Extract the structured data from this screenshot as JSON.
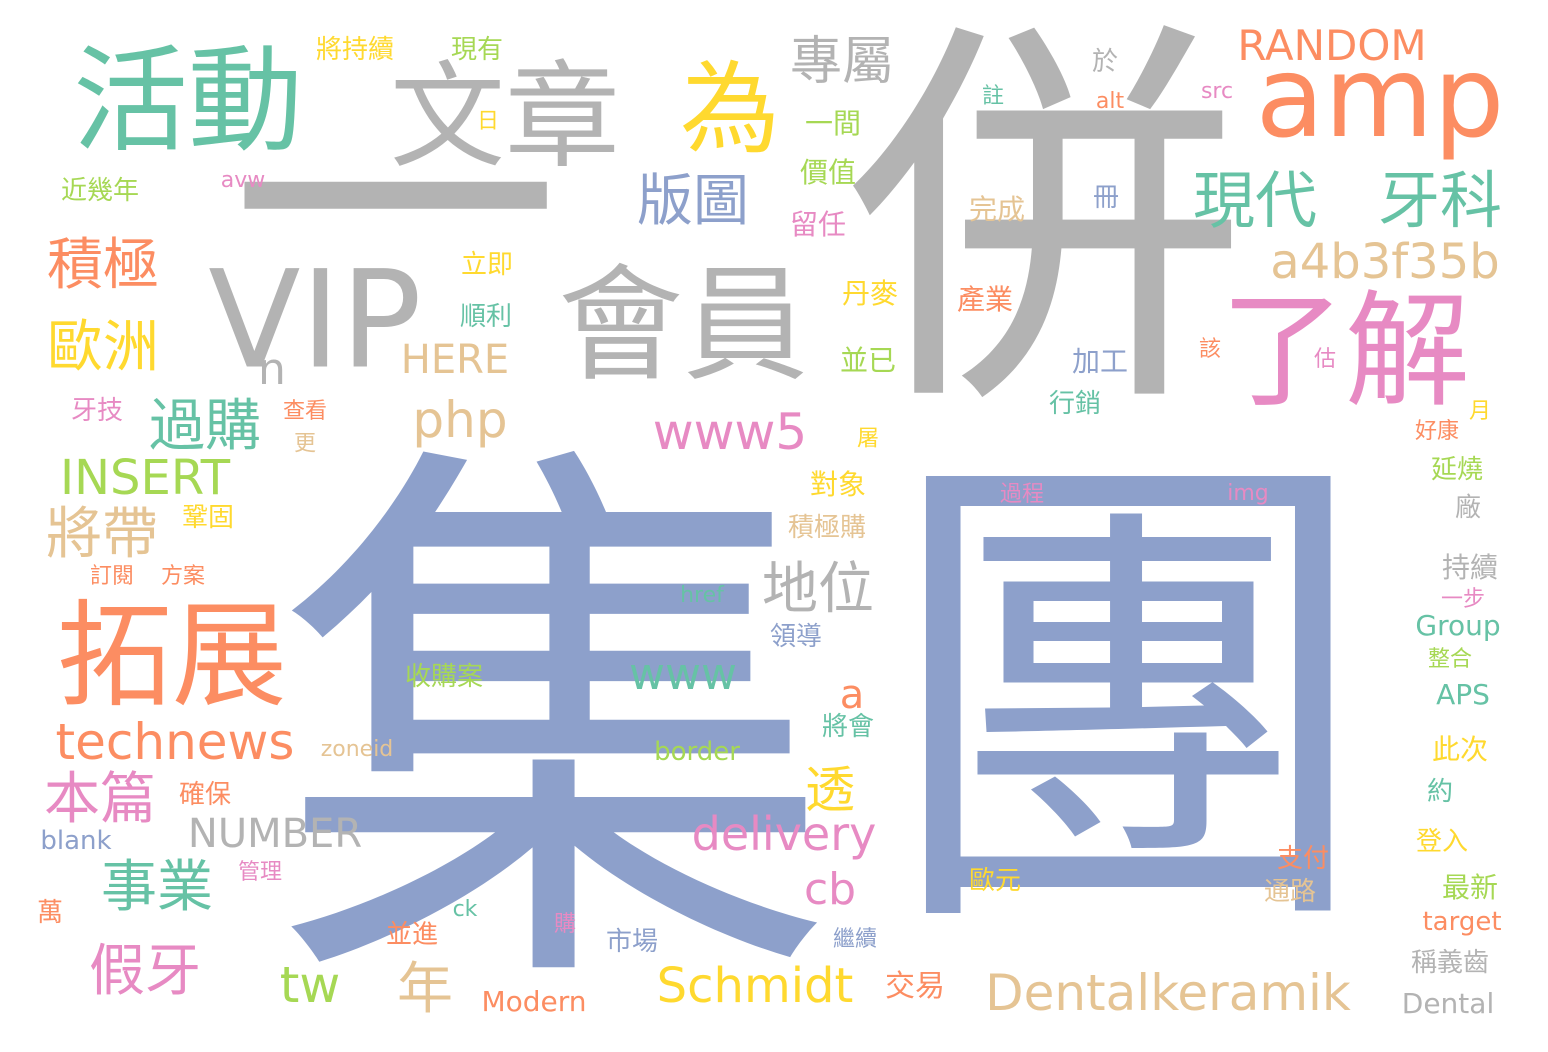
{
  "cloud": {
    "palette": {
      "gray": "#b3b3b3",
      "blue": "#8da0cb",
      "orange": "#fc8d62",
      "green": "#66c2a5",
      "pink": "#e78ac3",
      "lime": "#a6d854",
      "yellow": "#ffd92f",
      "tan": "#e5c494"
    },
    "words": [
      {
        "text": "集",
        "color": "blue"
      },
      {
        "text": "團",
        "color": "blue"
      },
      {
        "text": "併",
        "color": "gray"
      },
      {
        "text": "一",
        "color": "gray"
      },
      {
        "text": "活動",
        "color": "green"
      },
      {
        "text": "文章",
        "color": "gray"
      },
      {
        "text": "為",
        "color": "yellow"
      },
      {
        "text": "amp",
        "color": "orange"
      },
      {
        "text": "VIP",
        "color": "gray"
      },
      {
        "text": "會員",
        "color": "gray"
      },
      {
        "text": "了解",
        "color": "pink"
      },
      {
        "text": "拓展",
        "color": "orange"
      },
      {
        "text": "專屬",
        "color": "gray"
      },
      {
        "text": "RANDOM",
        "color": "orange"
      },
      {
        "text": "現代",
        "color": "green"
      },
      {
        "text": "牙科",
        "color": "green"
      },
      {
        "text": "版圖",
        "color": "blue"
      },
      {
        "text": "a4b3f35b",
        "color": "tan"
      },
      {
        "text": "積極",
        "color": "orange"
      },
      {
        "text": "歐洲",
        "color": "yellow"
      },
      {
        "text": "過購",
        "color": "green"
      },
      {
        "text": "php",
        "color": "tan"
      },
      {
        "text": "www5",
        "color": "pink"
      },
      {
        "text": "INSERT",
        "color": "lime"
      },
      {
        "text": "將帶",
        "color": "tan"
      },
      {
        "text": "地位",
        "color": "gray"
      },
      {
        "text": "www",
        "color": "green"
      },
      {
        "text": "technews",
        "color": "orange"
      },
      {
        "text": "本篇",
        "color": "pink"
      },
      {
        "text": "透",
        "color": "yellow"
      },
      {
        "text": "NUMBER",
        "color": "gray"
      },
      {
        "text": "delivery",
        "color": "pink"
      },
      {
        "text": "事業",
        "color": "green"
      },
      {
        "text": "cb",
        "color": "pink"
      },
      {
        "text": "假牙",
        "color": "pink"
      },
      {
        "text": "tw",
        "color": "lime"
      },
      {
        "text": "年",
        "color": "tan"
      },
      {
        "text": "Schmidt",
        "color": "yellow"
      },
      {
        "text": "Dentalkeramik",
        "color": "tan"
      },
      {
        "text": "HERE",
        "color": "tan"
      },
      {
        "text": "n",
        "color": "gray"
      },
      {
        "text": "a",
        "color": "orange"
      },
      {
        "text": "將持續",
        "color": "yellow"
      },
      {
        "text": "現有",
        "color": "lime"
      },
      {
        "text": "於",
        "color": "gray"
      },
      {
        "text": "註",
        "color": "green"
      },
      {
        "text": "alt",
        "color": "orange"
      },
      {
        "text": "src",
        "color": "pink"
      },
      {
        "text": "日",
        "color": "yellow"
      },
      {
        "text": "一間",
        "color": "lime"
      },
      {
        "text": "價值",
        "color": "lime"
      },
      {
        "text": "近幾年",
        "color": "lime"
      },
      {
        "text": "avw",
        "color": "pink"
      },
      {
        "text": "冊",
        "color": "blue"
      },
      {
        "text": "完成",
        "color": "tan"
      },
      {
        "text": "留任",
        "color": "pink"
      },
      {
        "text": "立即",
        "color": "yellow"
      },
      {
        "text": "丹麥",
        "color": "yellow"
      },
      {
        "text": "產業",
        "color": "orange"
      },
      {
        "text": "順利",
        "color": "green"
      },
      {
        "text": "並已",
        "color": "lime"
      },
      {
        "text": "該",
        "color": "orange"
      },
      {
        "text": "估",
        "color": "pink"
      },
      {
        "text": "加工",
        "color": "blue"
      },
      {
        "text": "牙技",
        "color": "pink"
      },
      {
        "text": "查看",
        "color": "orange"
      },
      {
        "text": "更",
        "color": "tan"
      },
      {
        "text": "行銷",
        "color": "green"
      },
      {
        "text": "月",
        "color": "yellow"
      },
      {
        "text": "屠",
        "color": "yellow"
      },
      {
        "text": "好康",
        "color": "orange"
      },
      {
        "text": "對象",
        "color": "yellow"
      },
      {
        "text": "鞏固",
        "color": "yellow"
      },
      {
        "text": "過程",
        "color": "pink"
      },
      {
        "text": "img",
        "color": "pink"
      },
      {
        "text": "延燒",
        "color": "lime"
      },
      {
        "text": "廠",
        "color": "gray"
      },
      {
        "text": "積極購",
        "color": "tan"
      },
      {
        "text": "訂閱",
        "color": "orange"
      },
      {
        "text": "方案",
        "color": "orange"
      },
      {
        "text": "持續",
        "color": "gray"
      },
      {
        "text": "href",
        "color": "green"
      },
      {
        "text": "一步",
        "color": "pink"
      },
      {
        "text": "Group",
        "color": "green"
      },
      {
        "text": "領導",
        "color": "blue"
      },
      {
        "text": "整合",
        "color": "lime"
      },
      {
        "text": "收購案",
        "color": "lime"
      },
      {
        "text": "APS",
        "color": "green"
      },
      {
        "text": "將會",
        "color": "green"
      },
      {
        "text": "zoneid",
        "color": "tan"
      },
      {
        "text": "border",
        "color": "lime"
      },
      {
        "text": "此次",
        "color": "yellow"
      },
      {
        "text": "確保",
        "color": "orange"
      },
      {
        "text": "約",
        "color": "green"
      },
      {
        "text": "blank",
        "color": "blue"
      },
      {
        "text": "登入",
        "color": "yellow"
      },
      {
        "text": "支付",
        "color": "orange"
      },
      {
        "text": "管理",
        "color": "pink"
      },
      {
        "text": "歐元",
        "color": "yellow"
      },
      {
        "text": "最新",
        "color": "lime"
      },
      {
        "text": "通路",
        "color": "tan"
      },
      {
        "text": "萬",
        "color": "orange"
      },
      {
        "text": "ck",
        "color": "green"
      },
      {
        "text": "購",
        "color": "pink"
      },
      {
        "text": "target",
        "color": "orange"
      },
      {
        "text": "並進",
        "color": "orange"
      },
      {
        "text": "市場",
        "color": "blue"
      },
      {
        "text": "繼續",
        "color": "blue"
      },
      {
        "text": "稱義齒",
        "color": "gray"
      },
      {
        "text": "交易",
        "color": "orange"
      },
      {
        "text": "Modern",
        "color": "orange"
      },
      {
        "text": "Dental",
        "color": "gray"
      }
    ]
  }
}
